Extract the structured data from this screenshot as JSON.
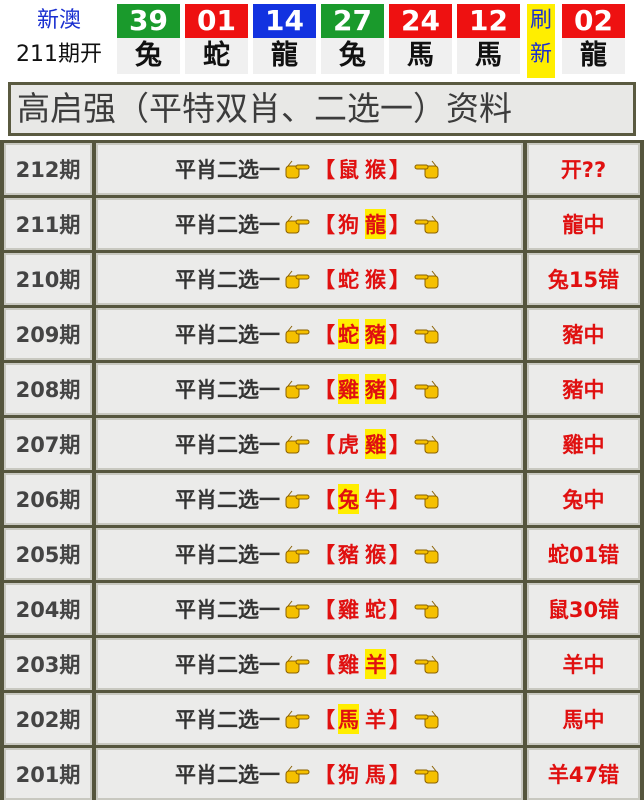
{
  "header": {
    "region": "新澳",
    "period": "211期开",
    "balls": [
      {
        "number": "39",
        "zodiac": "兔",
        "color": "#1a9a2c"
      },
      {
        "number": "01",
        "zodiac": "蛇",
        "color": "#ee1111"
      },
      {
        "number": "14",
        "zodiac": "龍",
        "color": "#1232e0"
      },
      {
        "number": "27",
        "zodiac": "兔",
        "color": "#1a9a2c"
      },
      {
        "number": "24",
        "zodiac": "馬",
        "color": "#ee1111"
      },
      {
        "number": "12",
        "zodiac": "馬",
        "color": "#ee1111"
      }
    ],
    "refresh": [
      "刷",
      "新"
    ],
    "last_ball": {
      "number": "02",
      "zodiac": "龍",
      "color": "#ee1111"
    }
  },
  "title": "高启强（平特双肖、二选一）资料",
  "bracket_open": "【",
  "bracket_close": "】",
  "rows": [
    {
      "period": "212期",
      "label": "平肖二选一",
      "picks": [
        {
          "text": "鼠",
          "hit": false
        },
        {
          "text": "猴",
          "hit": false
        }
      ],
      "result": "开??"
    },
    {
      "period": "211期",
      "label": "平肖二选一",
      "picks": [
        {
          "text": "狗",
          "hit": false
        },
        {
          "text": "龍",
          "hit": true
        }
      ],
      "result": "龍中"
    },
    {
      "period": "210期",
      "label": "平肖二选一",
      "picks": [
        {
          "text": "蛇",
          "hit": false
        },
        {
          "text": "猴",
          "hit": false
        }
      ],
      "result": "兔15错"
    },
    {
      "period": "209期",
      "label": "平肖二选一",
      "picks": [
        {
          "text": "蛇",
          "hit": true
        },
        {
          "text": "豬",
          "hit": true
        }
      ],
      "result": "豬中"
    },
    {
      "period": "208期",
      "label": "平肖二选一",
      "picks": [
        {
          "text": "雞",
          "hit": true
        },
        {
          "text": "豬",
          "hit": true
        }
      ],
      "result": "豬中"
    },
    {
      "period": "207期",
      "label": "平肖二选一",
      "picks": [
        {
          "text": "虎",
          "hit": false
        },
        {
          "text": "雞",
          "hit": true
        }
      ],
      "result": "雞中"
    },
    {
      "period": "206期",
      "label": "平肖二选一",
      "picks": [
        {
          "text": "兔",
          "hit": true
        },
        {
          "text": "牛",
          "hit": false
        }
      ],
      "result": "兔中"
    },
    {
      "period": "205期",
      "label": "平肖二选一",
      "picks": [
        {
          "text": "豬",
          "hit": false
        },
        {
          "text": "猴",
          "hit": false
        }
      ],
      "result": "蛇01错"
    },
    {
      "period": "204期",
      "label": "平肖二选一",
      "picks": [
        {
          "text": "雞",
          "hit": false
        },
        {
          "text": "蛇",
          "hit": false
        }
      ],
      "result": "鼠30错"
    },
    {
      "period": "203期",
      "label": "平肖二选一",
      "picks": [
        {
          "text": "雞",
          "hit": false
        },
        {
          "text": "羊",
          "hit": true
        }
      ],
      "result": "羊中"
    },
    {
      "period": "202期",
      "label": "平肖二选一",
      "picks": [
        {
          "text": "馬",
          "hit": true
        },
        {
          "text": "羊",
          "hit": false
        }
      ],
      "result": "馬中"
    },
    {
      "period": "201期",
      "label": "平肖二选一",
      "picks": [
        {
          "text": "狗",
          "hit": false
        },
        {
          "text": "馬",
          "hit": false
        }
      ],
      "result": "羊47错"
    }
  ]
}
